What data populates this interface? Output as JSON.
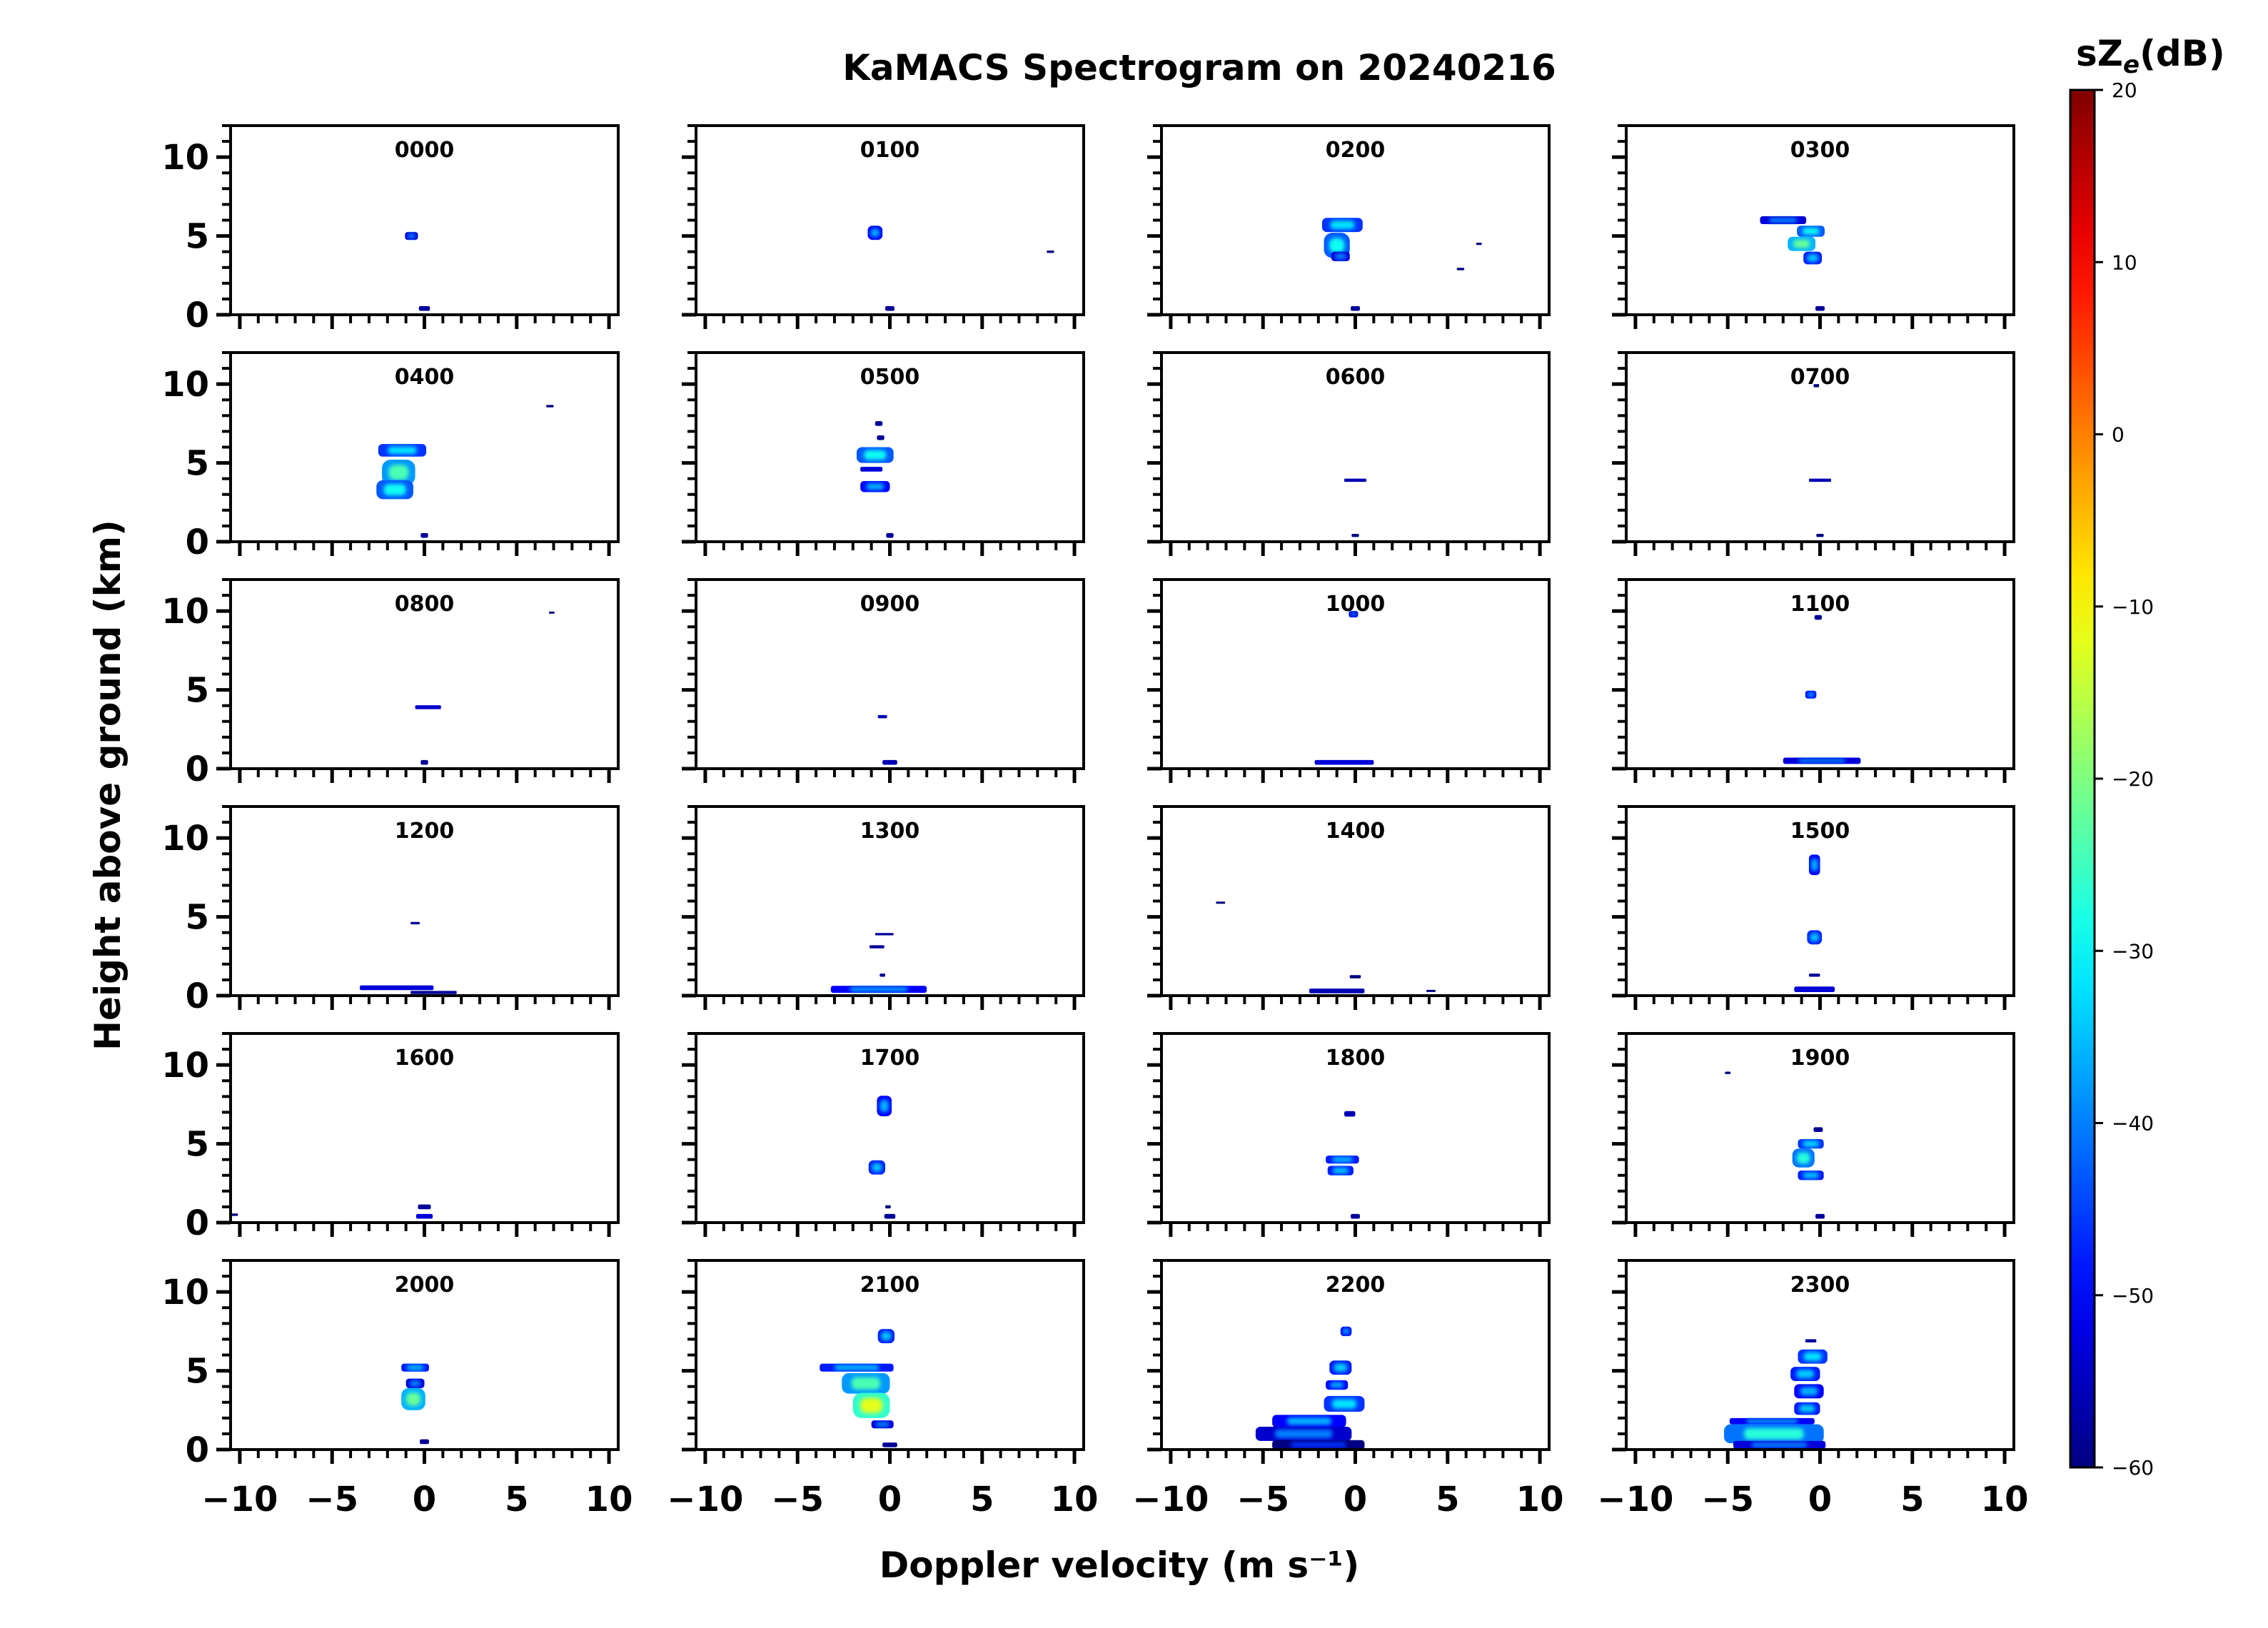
{
  "chart_data": {
    "type": "heatmap",
    "title": "KaMACS Spectrogram on 20240216",
    "xlabel": "Doppler velocity (m s⁻¹)",
    "ylabel": "Height above ground (km)",
    "xlim": [
      -10.5,
      10.5
    ],
    "ylim": [
      0,
      12
    ],
    "x_ticks": [
      -10,
      -5,
      0,
      5,
      10
    ],
    "x_tick_labels": [
      "−10",
      "−5",
      "0",
      "5",
      "10"
    ],
    "y_ticks": [
      0,
      5,
      10
    ],
    "y_tick_labels": [
      "0",
      "5",
      "10"
    ],
    "colorbar": {
      "label": "sZe(dB)",
      "label_base": "sZ",
      "label_sub": "e",
      "label_suffix": "(dB)",
      "min": -60,
      "max": 20,
      "ticks": [
        20,
        10,
        0,
        -10,
        -20,
        -30,
        -40,
        -50,
        -60
      ],
      "tick_labels": [
        "20",
        "10",
        "0",
        "−10",
        "−20",
        "−30",
        "−40",
        "−50",
        "−60"
      ],
      "colormap": "jet"
    },
    "panels": [
      {
        "label": "0000",
        "features": [
          {
            "v": -0.7,
            "h": 5.0,
            "w": 0.7,
            "hh": 0.5,
            "dbz": -45
          },
          {
            "v": 0.0,
            "h": 0.4,
            "w": 0.6,
            "hh": 0.3,
            "dbz": -50
          }
        ]
      },
      {
        "label": "0100",
        "features": [
          {
            "v": -0.8,
            "h": 5.2,
            "w": 0.8,
            "hh": 0.9,
            "dbz": -42
          },
          {
            "v": 0.0,
            "h": 0.4,
            "w": 0.5,
            "hh": 0.3,
            "dbz": -50
          },
          {
            "v": 8.7,
            "h": 4.0,
            "w": 0.4,
            "hh": 0.15,
            "dbz": -55
          }
        ]
      },
      {
        "label": "0200",
        "features": [
          {
            "v": -0.7,
            "h": 5.7,
            "w": 2.2,
            "hh": 0.9,
            "dbz": -38
          },
          {
            "v": -1.0,
            "h": 4.4,
            "w": 1.4,
            "hh": 1.6,
            "dbz": -35
          },
          {
            "v": -0.8,
            "h": 3.7,
            "w": 1.0,
            "hh": 0.6,
            "dbz": -45
          },
          {
            "v": 0.0,
            "h": 0.4,
            "w": 0.5,
            "hh": 0.3,
            "dbz": -50
          },
          {
            "v": 5.7,
            "h": 2.9,
            "w": 0.4,
            "hh": 0.15,
            "dbz": -55
          },
          {
            "v": 6.7,
            "h": 4.5,
            "w": 0.3,
            "hh": 0.15,
            "dbz": -55
          }
        ]
      },
      {
        "label": "0300",
        "features": [
          {
            "v": -2.0,
            "h": 6.0,
            "w": 2.5,
            "hh": 0.5,
            "dbz": -45
          },
          {
            "v": -0.5,
            "h": 5.3,
            "w": 1.5,
            "hh": 0.7,
            "dbz": -35
          },
          {
            "v": -1.0,
            "h": 4.5,
            "w": 1.5,
            "hh": 0.9,
            "dbz": -28
          },
          {
            "v": -0.4,
            "h": 3.6,
            "w": 1.0,
            "hh": 0.8,
            "dbz": -40
          },
          {
            "v": 0.0,
            "h": 0.4,
            "w": 0.5,
            "hh": 0.3,
            "dbz": -50
          }
        ]
      },
      {
        "label": "0400",
        "features": [
          {
            "v": -1.2,
            "h": 5.8,
            "w": 2.6,
            "hh": 0.8,
            "dbz": -38
          },
          {
            "v": -1.4,
            "h": 4.4,
            "w": 1.8,
            "hh": 1.6,
            "dbz": -30
          },
          {
            "v": -1.6,
            "h": 3.3,
            "w": 2.0,
            "hh": 1.2,
            "dbz": -35
          },
          {
            "v": 0.0,
            "h": 0.4,
            "w": 0.4,
            "hh": 0.3,
            "dbz": -50
          },
          {
            "v": 6.8,
            "h": 8.6,
            "w": 0.4,
            "hh": 0.15,
            "dbz": -55
          }
        ]
      },
      {
        "label": "0500",
        "features": [
          {
            "v": -0.6,
            "h": 7.5,
            "w": 0.4,
            "hh": 0.3,
            "dbz": -50
          },
          {
            "v": -0.5,
            "h": 6.6,
            "w": 0.4,
            "hh": 0.3,
            "dbz": -50
          },
          {
            "v": -0.8,
            "h": 5.5,
            "w": 2.0,
            "hh": 1.0,
            "dbz": -35
          },
          {
            "v": -1.0,
            "h": 4.6,
            "w": 1.2,
            "hh": 0.3,
            "dbz": -45
          },
          {
            "v": -0.8,
            "h": 3.5,
            "w": 1.6,
            "hh": 0.7,
            "dbz": -42
          },
          {
            "v": 0.0,
            "h": 0.4,
            "w": 0.4,
            "hh": 0.3,
            "dbz": -50
          }
        ]
      },
      {
        "label": "0600",
        "features": [
          {
            "v": 0.0,
            "h": 3.9,
            "w": 1.2,
            "hh": 0.2,
            "dbz": -48
          },
          {
            "v": 0.0,
            "h": 0.4,
            "w": 0.4,
            "hh": 0.2,
            "dbz": -52
          }
        ]
      },
      {
        "label": "0700",
        "features": [
          {
            "v": 0.0,
            "h": 3.9,
            "w": 1.2,
            "hh": 0.2,
            "dbz": -48
          },
          {
            "v": 0.0,
            "h": 0.4,
            "w": 0.4,
            "hh": 0.2,
            "dbz": -52
          },
          {
            "v": -0.2,
            "h": 9.9,
            "w": 0.3,
            "hh": 0.2,
            "dbz": -52
          }
        ]
      },
      {
        "label": "0800",
        "features": [
          {
            "v": 0.2,
            "h": 3.9,
            "w": 1.4,
            "hh": 0.25,
            "dbz": -46
          },
          {
            "v": 0.0,
            "h": 0.4,
            "w": 0.4,
            "hh": 0.3,
            "dbz": -50
          },
          {
            "v": 6.9,
            "h": 9.9,
            "w": 0.3,
            "hh": 0.12,
            "dbz": -55
          }
        ]
      },
      {
        "label": "0900",
        "features": [
          {
            "v": -0.4,
            "h": 3.3,
            "w": 0.5,
            "hh": 0.2,
            "dbz": -48
          },
          {
            "v": 0.0,
            "h": 0.4,
            "w": 0.8,
            "hh": 0.3,
            "dbz": -48
          }
        ]
      },
      {
        "label": "1000",
        "features": [
          {
            "v": -0.1,
            "h": 9.8,
            "w": 0.5,
            "hh": 0.4,
            "dbz": -45
          },
          {
            "v": -0.6,
            "h": 0.4,
            "w": 3.2,
            "hh": 0.3,
            "dbz": -45
          }
        ]
      },
      {
        "label": "1100",
        "features": [
          {
            "v": -0.1,
            "h": 9.6,
            "w": 0.4,
            "hh": 0.3,
            "dbz": -50
          },
          {
            "v": -0.5,
            "h": 4.7,
            "w": 0.6,
            "hh": 0.5,
            "dbz": -42
          },
          {
            "v": 0.1,
            "h": 0.5,
            "w": 4.2,
            "hh": 0.4,
            "dbz": -45
          }
        ]
      },
      {
        "label": "1200",
        "features": [
          {
            "v": -0.5,
            "h": 4.6,
            "w": 0.5,
            "hh": 0.15,
            "dbz": -50
          },
          {
            "v": -1.5,
            "h": 0.5,
            "w": 4.0,
            "hh": 0.3,
            "dbz": -45
          },
          {
            "v": 0.5,
            "h": 0.2,
            "w": 2.5,
            "hh": 0.2,
            "dbz": -50
          }
        ]
      },
      {
        "label": "1300",
        "features": [
          {
            "v": -0.3,
            "h": 3.9,
            "w": 1.0,
            "hh": 0.15,
            "dbz": -50
          },
          {
            "v": -0.7,
            "h": 3.1,
            "w": 0.8,
            "hh": 0.2,
            "dbz": -50
          },
          {
            "v": -0.4,
            "h": 1.3,
            "w": 0.3,
            "hh": 0.2,
            "dbz": -50
          },
          {
            "v": -0.6,
            "h": 0.4,
            "w": 5.2,
            "hh": 0.45,
            "dbz": -42
          }
        ]
      },
      {
        "label": "1400",
        "features": [
          {
            "v": -7.3,
            "h": 5.9,
            "w": 0.5,
            "hh": 0.12,
            "dbz": -55
          },
          {
            "v": 0.0,
            "h": 1.2,
            "w": 0.6,
            "hh": 0.2,
            "dbz": -52
          },
          {
            "v": -1.0,
            "h": 0.3,
            "w": 3.0,
            "hh": 0.3,
            "dbz": -48
          },
          {
            "v": 4.1,
            "h": 0.3,
            "w": 0.5,
            "hh": 0.12,
            "dbz": -55
          }
        ]
      },
      {
        "label": "1500",
        "features": [
          {
            "v": -0.3,
            "h": 8.3,
            "w": 0.6,
            "hh": 1.3,
            "dbz": -42
          },
          {
            "v": -0.3,
            "h": 3.7,
            "w": 0.8,
            "hh": 0.9,
            "dbz": -40
          },
          {
            "v": -0.3,
            "h": 1.3,
            "w": 0.6,
            "hh": 0.2,
            "dbz": -50
          },
          {
            "v": -0.3,
            "h": 0.4,
            "w": 2.2,
            "hh": 0.35,
            "dbz": -45
          }
        ]
      },
      {
        "label": "1600",
        "features": [
          {
            "v": -10.3,
            "h": 0.5,
            "w": 0.4,
            "hh": 0.15,
            "dbz": -55
          },
          {
            "v": 0.0,
            "h": 1.0,
            "w": 0.7,
            "hh": 0.3,
            "dbz": -50
          },
          {
            "v": 0.0,
            "h": 0.4,
            "w": 0.9,
            "hh": 0.3,
            "dbz": -45
          }
        ]
      },
      {
        "label": "1700",
        "features": [
          {
            "v": -0.3,
            "h": 7.4,
            "w": 0.8,
            "hh": 1.3,
            "dbz": -42
          },
          {
            "v": -0.7,
            "h": 3.5,
            "w": 0.9,
            "hh": 0.9,
            "dbz": -40
          },
          {
            "v": -0.1,
            "h": 1.0,
            "w": 0.3,
            "hh": 0.2,
            "dbz": -52
          },
          {
            "v": 0.0,
            "h": 0.4,
            "w": 0.6,
            "hh": 0.3,
            "dbz": -50
          }
        ]
      },
      {
        "label": "1800",
        "features": [
          {
            "v": -0.3,
            "h": 6.9,
            "w": 0.6,
            "hh": 0.35,
            "dbz": -48
          },
          {
            "v": -0.7,
            "h": 4.0,
            "w": 1.8,
            "hh": 0.5,
            "dbz": -40
          },
          {
            "v": -0.8,
            "h": 3.3,
            "w": 1.4,
            "hh": 0.6,
            "dbz": -40
          },
          {
            "v": 0.0,
            "h": 0.4,
            "w": 0.5,
            "hh": 0.3,
            "dbz": -50
          }
        ]
      },
      {
        "label": "1900",
        "features": [
          {
            "v": -5.0,
            "h": 9.5,
            "w": 0.3,
            "hh": 0.15,
            "dbz": -55
          },
          {
            "v": -0.1,
            "h": 5.9,
            "w": 0.5,
            "hh": 0.3,
            "dbz": -50
          },
          {
            "v": -0.5,
            "h": 5.0,
            "w": 1.4,
            "hh": 0.6,
            "dbz": -38
          },
          {
            "v": -0.9,
            "h": 4.1,
            "w": 1.2,
            "hh": 1.2,
            "dbz": -33
          },
          {
            "v": -0.5,
            "h": 3.0,
            "w": 1.4,
            "hh": 0.6,
            "dbz": -40
          },
          {
            "v": 0.0,
            "h": 0.4,
            "w": 0.5,
            "hh": 0.3,
            "dbz": -50
          }
        ]
      },
      {
        "label": "2000",
        "features": [
          {
            "v": -0.5,
            "h": 5.2,
            "w": 1.5,
            "hh": 0.5,
            "dbz": -40
          },
          {
            "v": -0.5,
            "h": 4.2,
            "w": 1.0,
            "hh": 0.6,
            "dbz": -45
          },
          {
            "v": -0.6,
            "h": 3.2,
            "w": 1.3,
            "hh": 1.4,
            "dbz": -28
          },
          {
            "v": 0.0,
            "h": 0.5,
            "w": 0.5,
            "hh": 0.3,
            "dbz": -50
          }
        ]
      },
      {
        "label": "2100",
        "features": [
          {
            "v": -0.2,
            "h": 7.2,
            "w": 0.9,
            "hh": 0.9,
            "dbz": -40
          },
          {
            "v": -1.8,
            "h": 5.2,
            "w": 4.0,
            "hh": 0.5,
            "dbz": -40
          },
          {
            "v": -1.3,
            "h": 4.2,
            "w": 2.6,
            "hh": 1.3,
            "dbz": -30
          },
          {
            "v": -1.0,
            "h": 2.8,
            "w": 2.0,
            "hh": 1.6,
            "dbz": -18
          },
          {
            "v": -0.4,
            "h": 1.6,
            "w": 1.2,
            "hh": 0.5,
            "dbz": -45
          },
          {
            "v": 0.0,
            "h": 0.3,
            "w": 0.8,
            "hh": 0.3,
            "dbz": -50
          }
        ]
      },
      {
        "label": "2200",
        "features": [
          {
            "v": -0.5,
            "h": 7.5,
            "w": 0.6,
            "hh": 0.6,
            "dbz": -42
          },
          {
            "v": -0.8,
            "h": 5.2,
            "w": 1.2,
            "hh": 0.9,
            "dbz": -40
          },
          {
            "v": -1.0,
            "h": 4.1,
            "w": 1.2,
            "hh": 0.6,
            "dbz": -42
          },
          {
            "v": -0.6,
            "h": 2.9,
            "w": 2.2,
            "hh": 1.0,
            "dbz": -38
          },
          {
            "v": -2.5,
            "h": 1.8,
            "w": 4.0,
            "hh": 0.8,
            "dbz": -42
          },
          {
            "v": -2.8,
            "h": 1.0,
            "w": 5.2,
            "hh": 0.9,
            "dbz": -46
          },
          {
            "v": -2.0,
            "h": 0.3,
            "w": 5.0,
            "hh": 0.6,
            "dbz": -52
          }
        ]
      },
      {
        "label": "2300",
        "features": [
          {
            "v": -0.5,
            "h": 6.9,
            "w": 0.6,
            "hh": 0.2,
            "dbz": -50
          },
          {
            "v": -0.4,
            "h": 5.9,
            "w": 1.6,
            "hh": 0.9,
            "dbz": -38
          },
          {
            "v": -0.8,
            "h": 4.8,
            "w": 1.6,
            "hh": 0.9,
            "dbz": -40
          },
          {
            "v": -0.6,
            "h": 3.7,
            "w": 1.6,
            "hh": 0.9,
            "dbz": -42
          },
          {
            "v": -0.7,
            "h": 2.6,
            "w": 1.4,
            "hh": 0.8,
            "dbz": -40
          },
          {
            "v": -2.6,
            "h": 1.8,
            "w": 4.6,
            "hh": 0.4,
            "dbz": -42
          },
          {
            "v": -2.5,
            "h": 1.0,
            "w": 5.4,
            "hh": 1.2,
            "dbz": -33
          },
          {
            "v": -2.2,
            "h": 0.3,
            "w": 5.0,
            "hh": 0.5,
            "dbz": -45
          }
        ]
      }
    ]
  }
}
